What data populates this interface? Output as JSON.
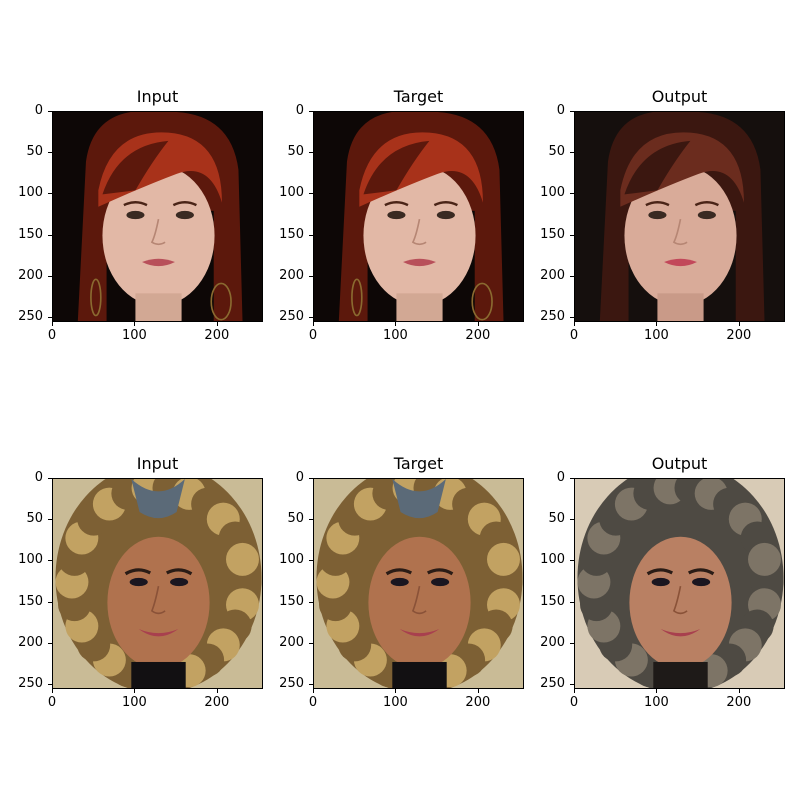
{
  "chart_data": [
    {
      "type": "image",
      "row": 0,
      "col": 0,
      "title": "Input",
      "xticks": [
        "0",
        "100",
        "200"
      ],
      "yticks": [
        "0",
        "50",
        "100",
        "150",
        "200",
        "250"
      ],
      "xlim": [
        0,
        256
      ],
      "ylim": [
        256,
        0
      ],
      "subject": "red-hair-woman",
      "variant": "input"
    },
    {
      "type": "image",
      "row": 0,
      "col": 1,
      "title": "Target",
      "xticks": [
        "0",
        "100",
        "200"
      ],
      "yticks": [
        "0",
        "50",
        "100",
        "150",
        "200",
        "250"
      ],
      "xlim": [
        0,
        256
      ],
      "ylim": [
        256,
        0
      ],
      "subject": "red-hair-woman",
      "variant": "target"
    },
    {
      "type": "image",
      "row": 0,
      "col": 2,
      "title": "Output",
      "xticks": [
        "0",
        "100",
        "200"
      ],
      "yticks": [
        "0",
        "50",
        "100",
        "150",
        "200",
        "250"
      ],
      "xlim": [
        0,
        256
      ],
      "ylim": [
        256,
        0
      ],
      "subject": "red-hair-woman",
      "variant": "output"
    },
    {
      "type": "image",
      "row": 1,
      "col": 0,
      "title": "Input",
      "xticks": [
        "0",
        "100",
        "200"
      ],
      "yticks": [
        "0",
        "50",
        "100",
        "150",
        "200",
        "250"
      ],
      "xlim": [
        0,
        256
      ],
      "ylim": [
        256,
        0
      ],
      "subject": "curly-blonde-woman",
      "variant": "input"
    },
    {
      "type": "image",
      "row": 1,
      "col": 1,
      "title": "Target",
      "xticks": [
        "0",
        "100",
        "200"
      ],
      "yticks": [
        "0",
        "50",
        "100",
        "150",
        "200",
        "250"
      ],
      "xlim": [
        0,
        256
      ],
      "ylim": [
        256,
        0
      ],
      "subject": "curly-blonde-woman",
      "variant": "target"
    },
    {
      "type": "image",
      "row": 1,
      "col": 2,
      "title": "Output",
      "xticks": [
        "0",
        "100",
        "200"
      ],
      "yticks": [
        "0",
        "50",
        "100",
        "150",
        "200",
        "250"
      ],
      "xlim": [
        0,
        256
      ],
      "ylim": [
        256,
        0
      ],
      "subject": "curly-blonde-woman",
      "variant": "output"
    }
  ]
}
